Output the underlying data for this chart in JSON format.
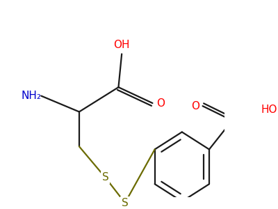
{
  "background_color": "#ffffff",
  "bond_color": "#1a1a1a",
  "sulfur_color": "#6b6b00",
  "oxygen_color": "#ff0000",
  "nitrogen_color": "#0000cc",
  "figsize": [
    4.0,
    3.0
  ],
  "dpi": 100,
  "xlim": [
    30,
    370
  ],
  "ylim": [
    20,
    290
  ]
}
